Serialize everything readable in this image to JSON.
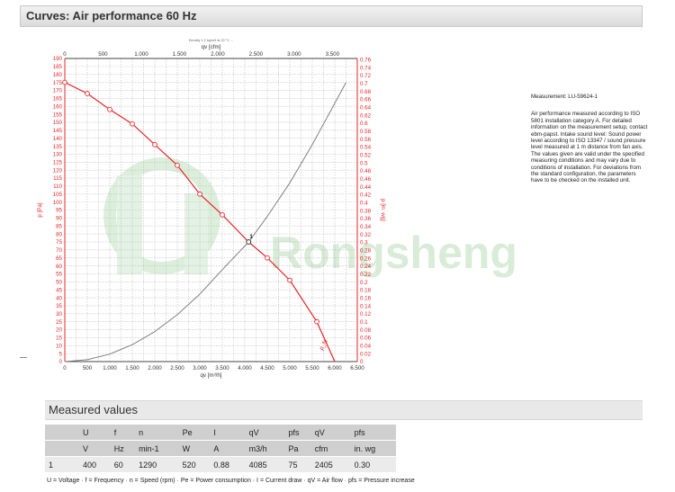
{
  "header": {
    "title": "Curves: Air performance 60 Hz"
  },
  "side_notes": {
    "measurement": "Measurement: LU-59624-1",
    "description": "Air performance measured according to ISO 5801 installation category A. For detailed information on the measurement setup, contact ebm-papst. Intake sound level: Sound power level according to ISO 13347 / sound pressure level measured at 1 m distance from fan axis. The values given are valid under the specified measuring conditions and may vary due to conditions of installation. For deviations from the standard configuration, the parameters have to be checked on the installed unit."
  },
  "watermark": {
    "text": "Rongsheng"
  },
  "measured": {
    "title": "Measured values",
    "headers": [
      "",
      "U",
      "f",
      "n",
      "Pe",
      "I",
      "qV",
      "pfs",
      "qV",
      "pfs"
    ],
    "units": [
      "",
      "V",
      "Hz",
      "min-1",
      "W",
      "A",
      "m3/h",
      "Pa",
      "cfm",
      "in. wg"
    ],
    "rows": [
      [
        "1",
        "400",
        "60",
        "1290",
        "520",
        "0.88",
        "4085",
        "75",
        "2405",
        "0.30"
      ]
    ]
  },
  "footnote": "U = Voltage · f = Frequency · n = Speed (rpm) · Pe = Power consumption · I = Current draw · qV = Air flow · pfs = Pressure increase",
  "colors": {
    "fan_curve": "#e8252a",
    "system_curve": "#808080",
    "grid": "#bdbdbd",
    "axis_red": "#e8252a"
  },
  "chart_data": {
    "type": "line",
    "top_axis_title": "Density 1.2 kg/m3 at 20 °C ...",
    "x_top_label": "qv [cfm]",
    "x_bottom_label": "qv [m³/h]",
    "y_left_label": "p [Pa]",
    "y_right_label": "p [in. wg]",
    "xlim": [
      0,
      6500
    ],
    "ylim": [
      0,
      190
    ],
    "x_ticks": [
      "0",
      "500",
      "1.000",
      "1.500",
      "2.000",
      "2.500",
      "3.000",
      "3.500",
      "4.000",
      "4.500",
      "5.000",
      "5.500",
      "6.000",
      "6.500"
    ],
    "x_top_ticks": [
      "0",
      "500",
      "1.000",
      "1.500",
      "2.000",
      "2.500",
      "3.000",
      "3.500"
    ],
    "y_ticks": [
      "0",
      "5",
      "10",
      "15",
      "20",
      "25",
      "30",
      "35",
      "40",
      "45",
      "50",
      "55",
      "60",
      "65",
      "70",
      "75",
      "80",
      "85",
      "90",
      "95",
      "100",
      "105",
      "110",
      "115",
      "120",
      "125",
      "130",
      "135",
      "140",
      "145",
      "150",
      "155",
      "160",
      "165",
      "170",
      "175",
      "180",
      "185",
      "190"
    ],
    "y_right_ticks": [
      "0",
      "0.02",
      "0.04",
      "0.06",
      "0.08",
      "0.1",
      "0.12",
      "0.14",
      "0.16",
      "0.18",
      "0.2",
      "0.22",
      "0.24",
      "0.26",
      "0.28",
      "0.3",
      "0.32",
      "0.34",
      "0.36",
      "0.38",
      "0.4",
      "0.42",
      "0.44",
      "0.46",
      "0.48",
      "0.5",
      "0.52",
      "0.54",
      "0.56",
      "0.58",
      "0.6",
      "0.62",
      "0.64",
      "0.66",
      "0.68",
      "0.7",
      "0.72",
      "0.74",
      "0.76"
    ],
    "series": [
      {
        "name": "fan curve",
        "curve_label": "p_fs",
        "x": [
          0,
          500,
          1000,
          1500,
          2000,
          2500,
          3000,
          3500,
          4085,
          4500,
          5000,
          5600,
          6000
        ],
        "y": [
          175,
          168,
          158,
          149,
          136,
          123,
          105,
          92,
          75,
          65,
          51,
          25,
          0
        ],
        "markers": [
          0,
          500,
          1000,
          1500,
          2000,
          2500,
          3000,
          3500,
          4500,
          5000,
          5600
        ]
      },
      {
        "name": "system curve",
        "x": [
          0,
          500,
          1000,
          1500,
          2000,
          2500,
          3000,
          3500,
          4085,
          4500,
          5000,
          5500,
          6000,
          6250
        ],
        "y": [
          0,
          1.2,
          4.7,
          10.6,
          18.8,
          29.4,
          42.3,
          57.6,
          75,
          91,
          112,
          136,
          162,
          175
        ]
      }
    ],
    "operating_point": {
      "label": "1",
      "x": 4085,
      "y": 75
    },
    "grid": true
  }
}
